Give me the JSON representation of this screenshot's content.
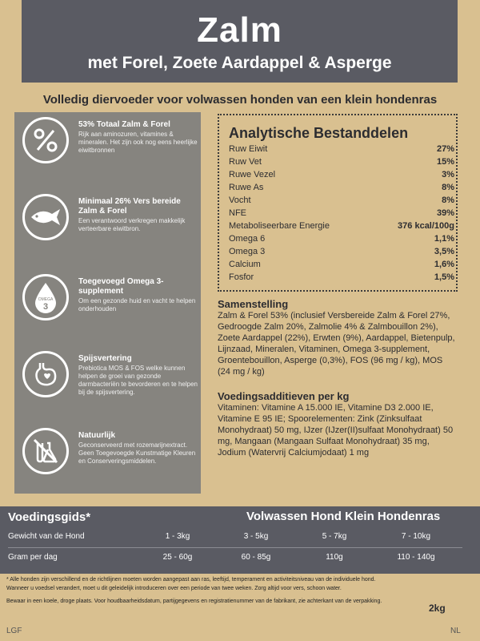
{
  "header": {
    "title": "Zalm",
    "subtitle": "met Forel, Zoete Aardappel & Asperge"
  },
  "tagline": "Volledig diervoeder voor volwassen honden van een klein hondenras",
  "features": [
    {
      "icon": "percent-icon",
      "title": "53% Totaal Zalm & Forel",
      "desc": "Rijk aan aminozuren, vitamines & mineralen. Het zijn ook nog eens heerlijke eiwitbronnen"
    },
    {
      "icon": "fish-icon",
      "title": "Minimaal 26% Vers bereide Zalm & Forel",
      "desc": "Een verantwoord verkregen makkelijk verteerbare eiwitbron."
    },
    {
      "icon": "omega-drop-icon",
      "title": "Toegevoegd Omega 3-supplement",
      "desc": "Om een gezonde huid en vacht te helpen onderhouden",
      "icon_label_top": "OMEGA",
      "icon_label_num": "3"
    },
    {
      "icon": "stomach-icon",
      "title": "Spijsvertering",
      "desc": "Prebiotica MOS & FOS welke kunnen helpen de groei van gezonde darmbacteriën te bevorderen en te helpen bij de spijsvertering."
    },
    {
      "icon": "no-chemicals-icon",
      "title": "Natuurlijk",
      "desc": "Geconserveerd met rozemarijnextract. Geen Toegevoegde Kunstmatige Kleuren en Conserveringsmiddelen."
    }
  ],
  "analysis": {
    "title": "Analytische Bestanddelen",
    "rows": [
      {
        "label": "Ruw Eiwit",
        "value": "27%"
      },
      {
        "label": "Ruw Vet",
        "value": "15%"
      },
      {
        "label": "Ruwe Vezel",
        "value": "3%"
      },
      {
        "label": "Ruwe As",
        "value": "8%"
      },
      {
        "label": "Vocht",
        "value": "8%"
      },
      {
        "label": "NFE",
        "value": "39%"
      },
      {
        "label": "Metaboliseerbare Energie",
        "value": "376 kcal/100g"
      },
      {
        "label": "Omega 6",
        "value": "1,1%"
      },
      {
        "label": "Omega 3",
        "value": "3,5%"
      },
      {
        "label": "Calcium",
        "value": "1,6%"
      },
      {
        "label": "Fosfor",
        "value": "1,5%"
      }
    ]
  },
  "composition": {
    "title": "Samenstelling",
    "text": "Zalm & Forel 53% (inclusief Versbereide Zalm & Forel 27%, Gedroogde Zalm 20%, Zalmolie 4% & Zalmbouillon 2%), Zoete Aardappel (22%), Erwten (9%), Aardappel, Bietenpulp, Lijnzaad, Mineralen, Vitaminen, Omega 3-supplement, Groentebouillon, Asperge (0,3%), FOS (96 mg / kg), MOS (24 mg / kg)"
  },
  "additives": {
    "title": "Voedingsadditieven per kg",
    "text": "Vitaminen: Vitamine A 15.000 IE, Vitamine D3 2.000 IE, Vitamine E 95 IE; Spoorelementen: Zink (Zinksulfaat Monohydraat) 50 mg, IJzer (IJzer(II)sulfaat Monohydraat) 50 mg, Mangaan (Mangaan Sulfaat Monohydraat) 35 mg, Jodium (Watervrij Calciumjodaat) 1 mg"
  },
  "guide": {
    "title": "Voedingsgids*",
    "subtitle": "Volwassen Hond Klein Hondenras",
    "rows": [
      {
        "label": "Gewicht van de Hond",
        "values": [
          "1 - 3kg",
          "3 - 5kg",
          "5 - 7kg",
          "7 - 10kg"
        ]
      },
      {
        "label": "Gram per dag",
        "values": [
          "25 - 60g",
          "60 - 85g",
          "110g",
          "110 - 140g"
        ]
      }
    ]
  },
  "footer": {
    "note1": "* Alle honden zijn verschillend en de richtlijnen moeten worden aangepast aan ras, leeftijd, temperament en activiteitsniveau van de individuele hond.",
    "note2": "Wanneer u voedsel verandert, moet u dit geleidelijk introduceren over een periode van twee weken. Zorg altijd voor vers, schoon water.",
    "note3": "Bewaar in een koele, droge plaats. Voor houdbaarheidsdatum, partijgegevens en registratienummer van de fabrikant, zie achterkant van de verpakking.",
    "weight": "2kg",
    "code_left": "LGF",
    "code_right": "NL"
  }
}
